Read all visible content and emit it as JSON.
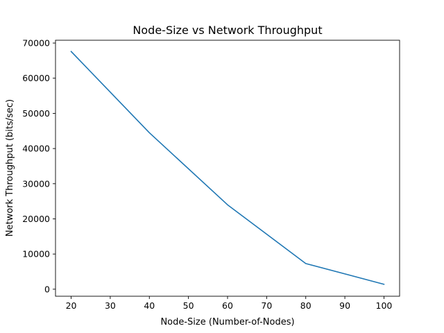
{
  "chart_data": {
    "type": "line",
    "title": "Node-Size vs Network Throughput",
    "xlabel": "Node-Size (Number-of-Nodes)",
    "ylabel": "Network Throughput (bits/sec)",
    "x": [
      20,
      40,
      60,
      80,
      100
    ],
    "series": [
      {
        "values": [
          67600,
          44500,
          24000,
          7300,
          1400
        ]
      }
    ],
    "xlim": [
      16,
      104
    ],
    "ylim": [
      -2000,
      70800
    ],
    "xticks": [
      20,
      30,
      40,
      50,
      60,
      70,
      80,
      90,
      100
    ],
    "yticks": [
      0,
      10000,
      20000,
      30000,
      40000,
      50000,
      60000,
      70000
    ],
    "grid": false,
    "legend": "none",
    "colors": {
      "line": "#1f77b4",
      "axes": "#000000",
      "background": "#ffffff"
    }
  }
}
